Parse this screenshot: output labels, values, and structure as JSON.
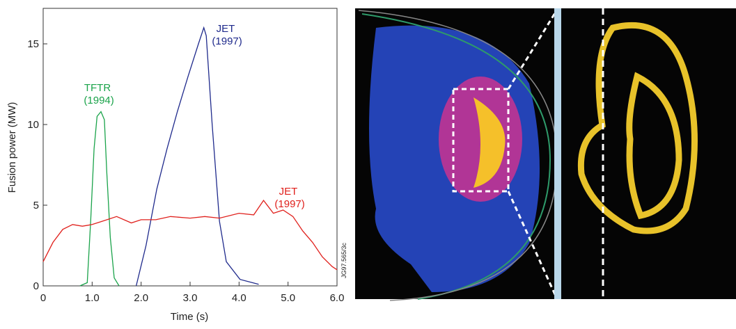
{
  "chart_data": {
    "type": "line",
    "xlabel": "Time (s)",
    "ylabel": "Fusion power (MW)",
    "figure_code": "JG97.565/3c",
    "xlim": [
      0,
      6
    ],
    "ylim": [
      0,
      17.2
    ],
    "xticks": [
      0,
      {
        "value": 1,
        "label": "1.0"
      },
      {
        "value": 2,
        "label": "2.0"
      },
      {
        "value": 3,
        "label": "3.0"
      },
      {
        "value": 4,
        "label": "4.0"
      },
      {
        "value": 5,
        "label": "5.0"
      },
      {
        "value": 6,
        "label": "6.0"
      }
    ],
    "yticks": [
      0,
      5,
      10,
      15
    ],
    "series": [
      {
        "name": "TFTR (1994)",
        "color": "#1aa34a",
        "x": [
          0.75,
          0.9,
          0.97,
          1.04,
          1.1,
          1.18,
          1.25,
          1.3,
          1.37,
          1.45,
          1.55
        ],
        "values": [
          0,
          0.2,
          4,
          8.5,
          10.5,
          10.8,
          10.3,
          7,
          3,
          0.5,
          0
        ]
      },
      {
        "name": "JET (1997)",
        "color": "#1f2a8c",
        "x": [
          1.9,
          2.1,
          2.32,
          2.53,
          2.74,
          2.96,
          3.17,
          3.28,
          3.33,
          3.45,
          3.6,
          3.74,
          4.02,
          4.4
        ],
        "values": [
          0,
          2.5,
          6,
          8.5,
          10.8,
          13,
          15,
          16,
          15.5,
          10,
          4,
          1.5,
          0.4,
          0.1
        ]
      },
      {
        "name": "JET (1997)",
        "color": "#e0201c",
        "x": [
          0,
          0.2,
          0.4,
          0.6,
          0.8,
          1.0,
          1.2,
          1.5,
          1.8,
          2.0,
          2.3,
          2.6,
          3.0,
          3.3,
          3.6,
          4.0,
          4.3,
          4.5,
          4.7,
          4.9,
          5.1,
          5.3,
          5.5,
          5.7,
          5.9,
          6.0
        ],
        "values": [
          1.5,
          2.7,
          3.5,
          3.8,
          3.7,
          3.8,
          4.0,
          4.3,
          3.9,
          4.1,
          4.1,
          4.3,
          4.2,
          4.3,
          4.2,
          4.5,
          4.4,
          5.3,
          4.5,
          4.7,
          4.3,
          3.4,
          2.7,
          1.8,
          1.2,
          1.0
        ]
      }
    ]
  }
}
